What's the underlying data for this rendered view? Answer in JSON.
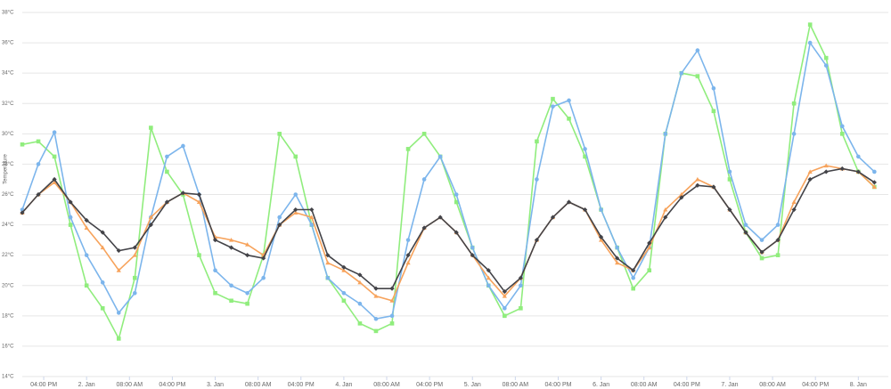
{
  "chart_data": {
    "type": "line",
    "y_label": "Temperature",
    "x": [
      -12,
      -9,
      -6,
      -3,
      0,
      3,
      6,
      9,
      12,
      15,
      18,
      21,
      24,
      27,
      30,
      33,
      36,
      39,
      42,
      45,
      48,
      51,
      54,
      57,
      60,
      63,
      66,
      69,
      72,
      75,
      78,
      81,
      84,
      87,
      90,
      93,
      96,
      99,
      102,
      105,
      108,
      111,
      114,
      117,
      120,
      123,
      126,
      129,
      132,
      135,
      138,
      141,
      144,
      147
    ],
    "xlim": [
      -12,
      149.6
    ],
    "xticks": [
      {
        "value": -8,
        "label": "04:00 PM"
      },
      {
        "value": 0,
        "label": "2. Jan"
      },
      {
        "value": 8,
        "label": "08:00 AM"
      },
      {
        "value": 16,
        "label": "04:00 PM"
      },
      {
        "value": 24,
        "label": "3. Jan"
      },
      {
        "value": 32,
        "label": "08:00 AM"
      },
      {
        "value": 40,
        "label": "04:00 PM"
      },
      {
        "value": 48,
        "label": "4. Jan"
      },
      {
        "value": 56,
        "label": "08:00 AM"
      },
      {
        "value": 64,
        "label": "04:00 PM"
      },
      {
        "value": 72,
        "label": "5. Jan"
      },
      {
        "value": 80,
        "label": "08:00 AM"
      },
      {
        "value": 88,
        "label": "04:00 PM"
      },
      {
        "value": 96,
        "label": "6. Jan"
      },
      {
        "value": 104,
        "label": "08:00 AM"
      },
      {
        "value": 112,
        "label": "04:00 PM"
      },
      {
        "value": 120,
        "label": "7. Jan"
      },
      {
        "value": 128,
        "label": "08:00 AM"
      },
      {
        "value": 136,
        "label": "04:00 PM"
      },
      {
        "value": 144,
        "label": "8. Jan"
      }
    ],
    "ylim": [
      14,
      38
    ],
    "yticks": [
      {
        "value": 14,
        "label": "14°C"
      },
      {
        "value": 16,
        "label": "16°C"
      },
      {
        "value": 18,
        "label": "18°C"
      },
      {
        "value": 20,
        "label": "20°C"
      },
      {
        "value": 22,
        "label": "22°C"
      },
      {
        "value": 24,
        "label": "24°C"
      },
      {
        "value": 26,
        "label": "26°C"
      },
      {
        "value": 28,
        "label": "28°C"
      },
      {
        "value": 30,
        "label": "30°C"
      },
      {
        "value": 32,
        "label": "32°C"
      },
      {
        "value": 34,
        "label": "34°C"
      },
      {
        "value": 36,
        "label": "36°C"
      },
      {
        "value": 38,
        "label": "38°C"
      }
    ],
    "grid": true,
    "series": [
      {
        "color": "#90ed7d",
        "marker": "square",
        "values": [
          29.3,
          29.5,
          28.5,
          24,
          20,
          18.5,
          16.5,
          20.5,
          30.4,
          27.5,
          26,
          22,
          19.5,
          19,
          18.8,
          22,
          30,
          28.5,
          24,
          20.5,
          19,
          17.5,
          17,
          17.5,
          29,
          30,
          28.5,
          25.5,
          22.5,
          20,
          18,
          18.5,
          29.5,
          32.3,
          31,
          28.5,
          25,
          22.5,
          19.8,
          21,
          30,
          34,
          33.8,
          31.5,
          27,
          23.5,
          21.8,
          22,
          32,
          37.2,
          35,
          30,
          27.5,
          26.5
        ]
      },
      {
        "color": "#7cb5ec",
        "marker": "circle",
        "values": [
          25,
          28,
          30.1,
          24.5,
          22,
          20.2,
          18.2,
          19.5,
          24.5,
          28.5,
          29.2,
          26,
          21,
          20,
          19.5,
          20.5,
          24.5,
          26,
          24,
          20.5,
          19.5,
          18.8,
          17.8,
          18,
          23,
          27,
          28.5,
          26,
          22.5,
          20,
          18.5,
          20,
          27,
          31.8,
          32.2,
          29,
          25,
          22.5,
          20.5,
          22.5,
          30,
          34,
          35.5,
          33,
          27.5,
          24,
          23,
          24,
          30,
          36,
          34.5,
          30.5,
          28.5,
          27.5
        ]
      },
      {
        "color": "#f7a35c",
        "marker": "triangle",
        "values": [
          24.8,
          26,
          26.8,
          25.5,
          23.8,
          22.5,
          21,
          22,
          24.5,
          25.5,
          26.1,
          25.5,
          23.2,
          23,
          22.7,
          22,
          24,
          24.8,
          24.5,
          21.5,
          21,
          20.2,
          19.3,
          19,
          21.5,
          23.8,
          24.5,
          23.5,
          22,
          20.5,
          19.3,
          20.5,
          23,
          24.5,
          25.5,
          25,
          23,
          21.5,
          21,
          22.5,
          25,
          26,
          27,
          26.5,
          25,
          23.5,
          22.2,
          23,
          25.5,
          27.5,
          27.9,
          27.7,
          27.5,
          26.5
        ]
      },
      {
        "color": "#434348",
        "marker": "diamond",
        "values": [
          24.8,
          26,
          27,
          25.5,
          24.3,
          23.5,
          22.3,
          22.5,
          24,
          25.5,
          26.1,
          26,
          23,
          22.5,
          22,
          21.8,
          24,
          25,
          25,
          22,
          21.2,
          20.7,
          19.8,
          19.8,
          22,
          23.8,
          24.5,
          23.5,
          22,
          21,
          19.6,
          20.5,
          23,
          24.5,
          25.5,
          25,
          23.2,
          21.8,
          21,
          22.8,
          24.5,
          25.8,
          26.6,
          26.5,
          25,
          23.5,
          22.2,
          23,
          25,
          27,
          27.5,
          27.7,
          27.5,
          26.8
        ]
      }
    ]
  }
}
